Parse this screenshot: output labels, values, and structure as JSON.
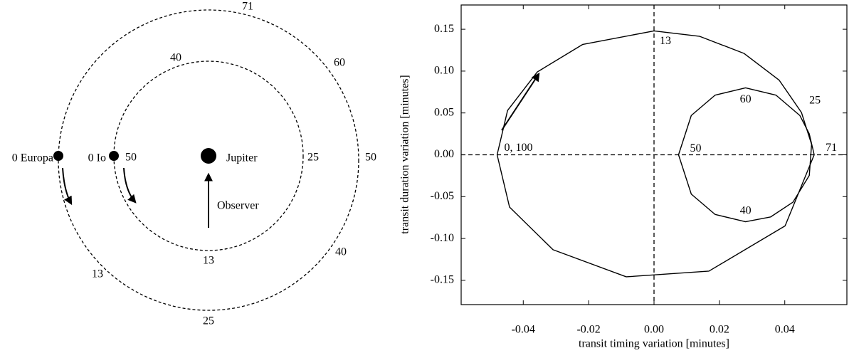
{
  "diagram": {
    "labels": {
      "europa": "0 Europa",
      "io": "0 Io",
      "jupiter": "Jupiter",
      "observer": "Observer"
    },
    "io_orbit_marks": [
      "40",
      "25",
      "13",
      "50"
    ],
    "europa_orbit_marks": [
      "71",
      "60",
      "50",
      "40",
      "25",
      "13"
    ]
  },
  "chart_data": {
    "type": "line",
    "x_label": "transit timing variation [minutes]",
    "y_label": "transit duration variation [minutes]",
    "x": [
      -0.048,
      -0.0448,
      -0.0357,
      -0.0218,
      0,
      0.014,
      0.0275,
      0.0383,
      0.0451,
      0.0482,
      0.0475,
      0.0425,
      0.0357,
      0.028,
      0.0187,
      0.0114,
      0.0075,
      0.0114,
      0.0187,
      0.028,
      0.0373,
      0.0446,
      0.0475,
      0.049,
      0.0401,
      0.0168,
      -0.0085,
      -0.0309,
      -0.0442,
      -0.048
    ],
    "values": [
      0,
      0.053,
      0.099,
      0.1319,
      0.148,
      0.1415,
      0.1212,
      0.0891,
      0.0506,
      0.0125,
      -0.0247,
      -0.0566,
      -0.0742,
      -0.08,
      -0.0713,
      -0.047,
      0,
      0.047,
      0.0713,
      0.08,
      0.0713,
      0.047,
      0.025,
      0,
      -0.0849,
      -0.139,
      -0.1458,
      -0.1134,
      -0.0625,
      0
    ],
    "point_labels": [
      "0, 100",
      null,
      null,
      null,
      "13",
      null,
      null,
      null,
      "25",
      null,
      null,
      null,
      null,
      "40",
      null,
      null,
      "50",
      null,
      null,
      "60",
      null,
      null,
      null,
      "71",
      null,
      null,
      null,
      null,
      null,
      null
    ],
    "color": "#000000",
    "xlim": [
      -0.059,
      0.059
    ],
    "ylim": [
      -0.179,
      0.179
    ],
    "xticks": [
      -0.04,
      -0.02,
      {
        "value": 0,
        "label": "0.00"
      },
      0.02,
      0.04
    ],
    "yticks": [
      -0.15,
      {
        "value": -0.1,
        "label": "-0.10"
      },
      -0.05,
      {
        "value": 0,
        "label": "0.00"
      },
      0.05,
      {
        "value": 0.1,
        "label": "0.10"
      },
      0.15
    ],
    "zero_lines": true,
    "grid": false
  }
}
